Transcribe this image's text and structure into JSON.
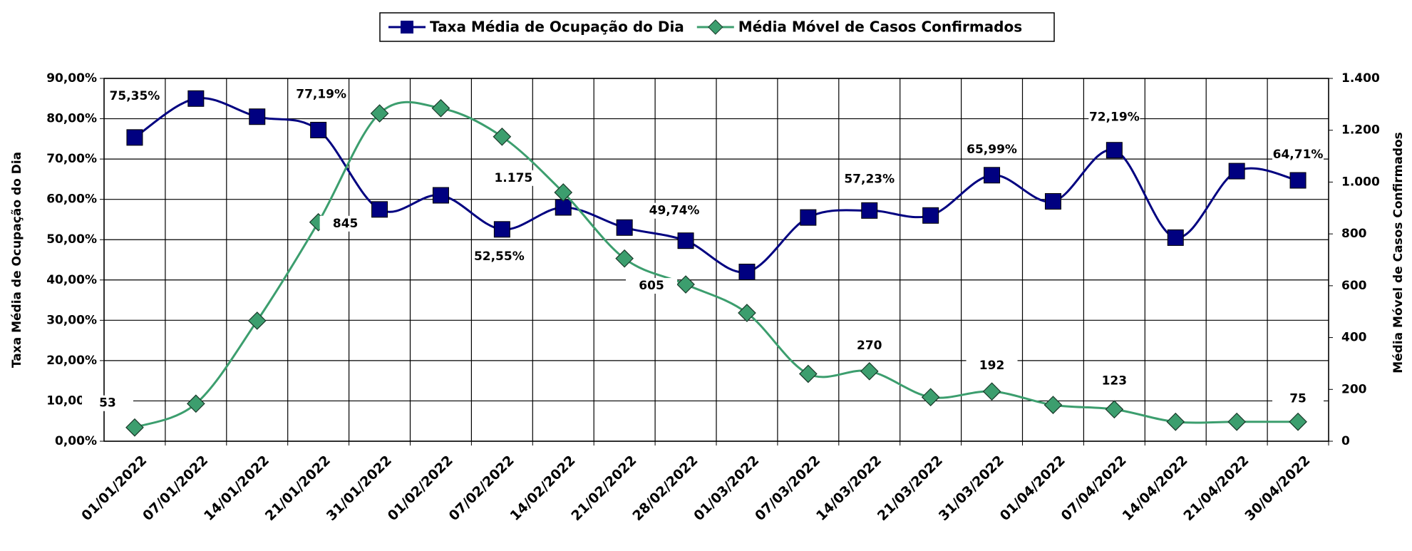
{
  "chart_data": {
    "type": "line",
    "categories": [
      "01/01/2022",
      "07/01/2022",
      "14/01/2022",
      "21/01/2022",
      "31/01/2022",
      "01/02/2022",
      "07/02/2022",
      "14/02/2022",
      "21/02/2022",
      "28/02/2022",
      "01/03/2022",
      "07/03/2022",
      "14/03/2022",
      "21/03/2022",
      "31/03/2022",
      "01/04/2022",
      "07/04/2022",
      "14/04/2022",
      "21/04/2022",
      "30/04/2022"
    ],
    "series": [
      {
        "name": "Taxa Média de Ocupação do Dia",
        "color": "#000080",
        "marker": "square",
        "values": [
          75.35,
          85,
          80.5,
          77.19,
          57.5,
          61,
          52.55,
          58,
          53,
          49.74,
          42,
          55.5,
          57.23,
          56,
          65.99,
          59.5,
          72.19,
          50.5,
          67,
          64.71
        ],
        "value_labels": [
          "75,35%",
          null,
          null,
          "77,19%",
          null,
          null,
          "52,55%",
          null,
          null,
          "49,74%",
          null,
          null,
          "57,23%",
          null,
          "65,99%",
          null,
          "72,19%",
          null,
          null,
          "64,71%"
        ]
      },
      {
        "name": "Média Móvel de Casos Confirmados",
        "color": "#3c9e6e",
        "marker": "diamond",
        "axis": "y2",
        "values": [
          53,
          145,
          465,
          845,
          1265,
          1285,
          1175,
          960,
          705,
          605,
          495,
          260,
          270,
          170,
          192,
          140,
          123,
          75,
          75,
          75
        ],
        "value_labels": [
          "53",
          null,
          null,
          "845",
          null,
          null,
          "1.175",
          null,
          null,
          "605",
          null,
          null,
          "270",
          null,
          "192",
          null,
          "123",
          null,
          null,
          "75"
        ]
      }
    ],
    "ylabel": "Taxa Média de Ocupação do Dia",
    "y2label": "Média Móvel de Casos Confirmados",
    "ylim": [
      0,
      90
    ],
    "yticks": [
      {
        "value": 0,
        "label": "0,00%"
      },
      {
        "value": 10,
        "label": "10,00%"
      },
      {
        "value": 20,
        "label": "20,00%"
      },
      {
        "value": 30,
        "label": "30,00%"
      },
      {
        "value": 40,
        "label": "40,00%"
      },
      {
        "value": 50,
        "label": "50,00%"
      },
      {
        "value": 60,
        "label": "60,00%"
      },
      {
        "value": 70,
        "label": "70,00%"
      },
      {
        "value": 80,
        "label": "80,00%"
      },
      {
        "value": 90,
        "label": "90,00%"
      }
    ],
    "y2lim": [
      0,
      1400
    ],
    "y2ticks": [
      0,
      200,
      400,
      600,
      800,
      {
        "value": 1000,
        "label": "1.000"
      },
      {
        "value": 1200,
        "label": "1.200"
      },
      {
        "value": 1400,
        "label": "1.400"
      }
    ],
    "grid": true,
    "legend": "top"
  }
}
